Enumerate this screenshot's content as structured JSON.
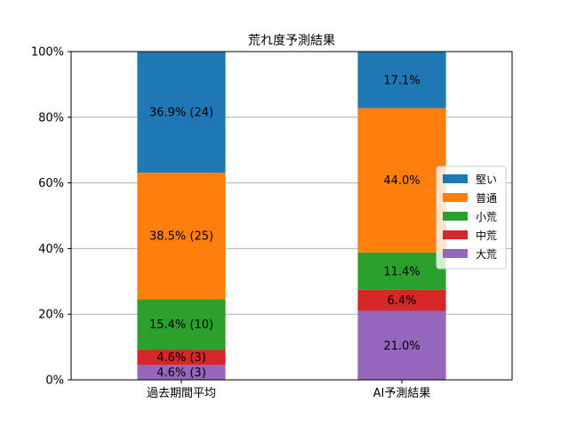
{
  "chart_data": {
    "type": "bar",
    "stacked": true,
    "title": "荒れ度予測結果",
    "xlabel": "",
    "ylabel": "",
    "categories": [
      "過去期間平均",
      "AI予測結果"
    ],
    "ylim": [
      0,
      100
    ],
    "yticks": [
      "0%",
      "20%",
      "40%",
      "60%",
      "80%",
      "100%"
    ],
    "grid": "y",
    "legend_position": "right",
    "series": [
      {
        "name": "大荒",
        "color": "#9467bd",
        "values": [
          4.6,
          21.0
        ],
        "labels": [
          "4.6% (3)",
          "21.0%"
        ]
      },
      {
        "name": "中荒",
        "color": "#d62728",
        "values": [
          4.6,
          6.4
        ],
        "labels": [
          "4.6% (3)",
          "6.4%"
        ]
      },
      {
        "name": "小荒",
        "color": "#2ca02c",
        "values": [
          15.4,
          11.4
        ],
        "labels": [
          "15.4% (10)",
          "11.4%"
        ]
      },
      {
        "name": "普通",
        "color": "#ff7f0e",
        "values": [
          38.5,
          44.0
        ],
        "labels": [
          "38.5% (25)",
          "44.0%"
        ]
      },
      {
        "name": "堅い",
        "color": "#1f77b4",
        "values": [
          36.9,
          17.1
        ],
        "labels": [
          "36.9% (24)",
          "17.1%"
        ]
      }
    ],
    "legend_order": [
      "堅い",
      "普通",
      "小荒",
      "中荒",
      "大荒"
    ]
  }
}
